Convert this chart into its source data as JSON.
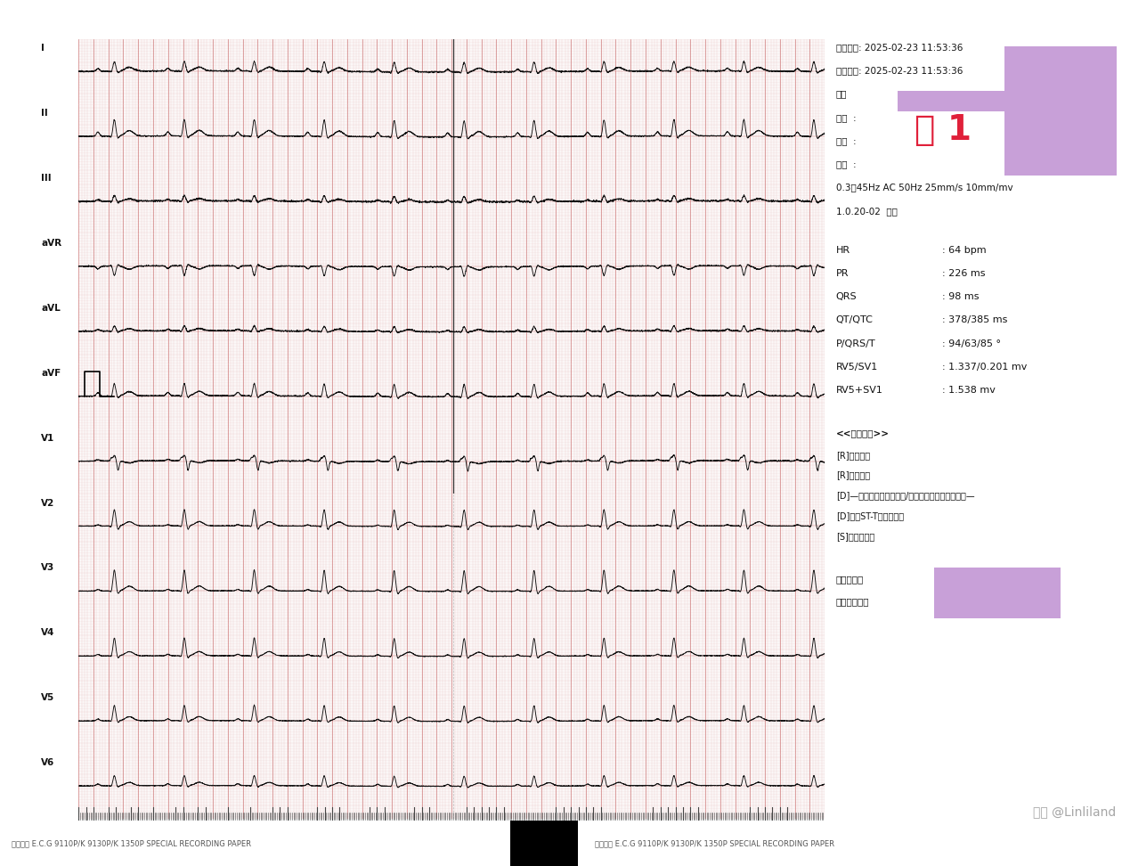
{
  "bg_color": "#ffffff",
  "grid_minor_color": "#e8c8c8",
  "grid_major_color": "#d08080",
  "ecg_color": "#111111",
  "paper_label_left": "日本光电 E.C.G 9110P/K 9130P/K 1350P SPECIAL RECORDING PAPER",
  "paper_label_right": "日本光电 E.C.G 9110P/K 9130P/K 1350P SPECIAL RECORDING PAPER",
  "watermark": "头条 @Linliland",
  "info_line1": "检查时间: 2025-02-23 11:53:36",
  "info_line2": "打印时间: 2025-02-23 11:53:36",
  "info_biaohao": "编号",
  "info_xingming": "姓名  :",
  "info_xingbie": "性别  :",
  "info_nianling": "年龄  :",
  "info_filter": "0.3～45Hz AC 50Hz 25mm/s 10mm/mv",
  "info_sync": "1.0.20-02  同步",
  "ecg_params": [
    [
      "HR",
      "64 bpm"
    ],
    [
      "PR",
      "226 ms"
    ],
    [
      "QRS",
      "98 ms"
    ],
    [
      "QT/QTC",
      "378/385 ms"
    ],
    [
      "P/QRS/T",
      "94/63/85 °"
    ],
    [
      "RV5/SV1",
      "1.337/0.201 mv"
    ],
    [
      "RV5+SV1",
      "1.538 mv"
    ]
  ],
  "diagnosis_header": "<<诊断结果>>",
  "diagnosis_lines": [
    "[R]心房扑颤",
    "[R]室性早搏",
    "[D]—在不知道病人的性别/年龄情况下做的诊断结论—",
    "[D]偶发ST-T异常不明显",
    "[S]异常心电图"
  ],
  "doctor_confirm": "医师确认：",
  "doctor_note": "注：需医师确",
  "purple_overlay_color": "#c8a0d8",
  "red_text_color": "#e0203a",
  "fig1_text": "图 1",
  "lead_labels": [
    "I",
    "II",
    "III",
    "aVR",
    "aVL",
    "aVF",
    "V1",
    "V2",
    "V3",
    "V4",
    "V5",
    "V6"
  ],
  "hr": 64,
  "ecg_duration": 10.0,
  "vline_x": 5.02
}
